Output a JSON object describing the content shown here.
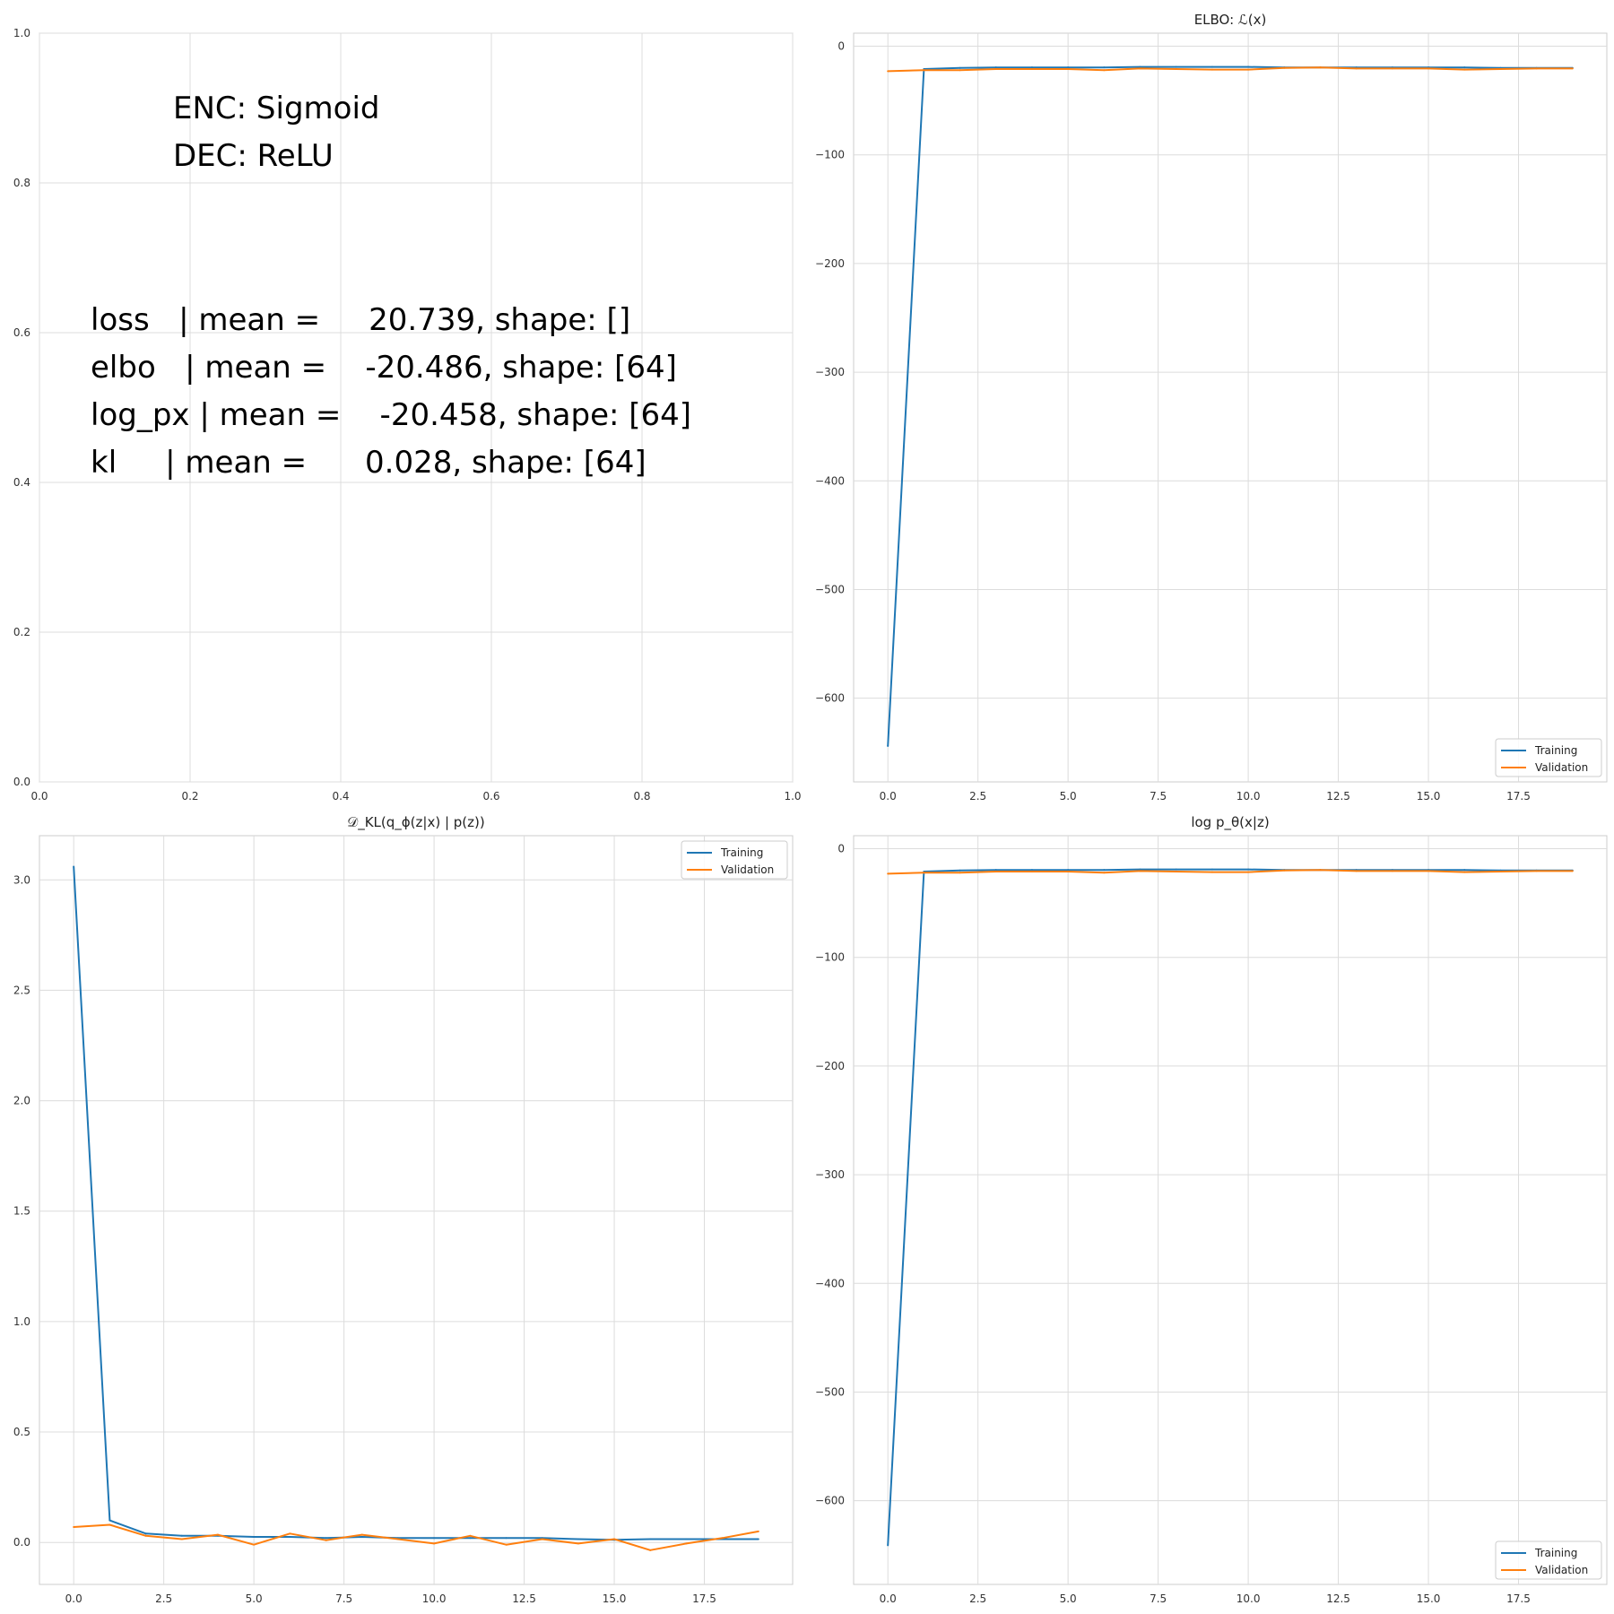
{
  "chart_data": [
    {
      "id": "text_panel",
      "type": "text",
      "title": "",
      "xlim": [
        0,
        1
      ],
      "ylim": [
        0,
        1
      ],
      "xticks": [
        "0.0",
        "0.2",
        "0.4",
        "0.6",
        "0.8",
        "1.0"
      ],
      "yticks": [
        "0.0",
        "0.2",
        "0.4",
        "0.6",
        "0.8",
        "1.0"
      ],
      "grid": true,
      "header_lines": [
        "ENC: Sigmoid",
        "DEC: ReLU"
      ],
      "stat_lines": [
        "loss   | mean =     20.739, shape: []",
        "elbo   | mean =    -20.486, shape: [64]",
        "log_px | mean =    -20.458, shape: [64]",
        "kl     | mean =      0.028, shape: [64]"
      ]
    },
    {
      "id": "elbo",
      "type": "line",
      "title": "ELBO: ℒ(x)",
      "xlim": [
        -0.95,
        19.95
      ],
      "ylim": [
        -677,
        12
      ],
      "xticks": [
        "0.0",
        "2.5",
        "5.0",
        "7.5",
        "10.0",
        "12.5",
        "15.0",
        "17.5"
      ],
      "xtick_values": [
        0,
        2.5,
        5,
        7.5,
        10,
        12.5,
        15,
        17.5
      ],
      "yticks": [
        "−600",
        "−500",
        "−400",
        "−300",
        "−200",
        "−100",
        "0"
      ],
      "ytick_values": [
        -600,
        -500,
        -400,
        -300,
        -200,
        -100,
        0
      ],
      "grid": true,
      "legend_position": "lower-right",
      "x": [
        0,
        1,
        2,
        3,
        4,
        5,
        6,
        7,
        8,
        9,
        10,
        11,
        12,
        13,
        14,
        15,
        16,
        17,
        18,
        19
      ],
      "series": [
        {
          "name": "Training",
          "color": "#1f77b4",
          "values": [
            -644,
            -21,
            -20,
            -19.5,
            -19.5,
            -19.5,
            -19.5,
            -19,
            -19,
            -19,
            -19,
            -19.5,
            -19.5,
            -19.5,
            -19.5,
            -19.5,
            -19.5,
            -20,
            -20,
            -20
          ]
        },
        {
          "name": "Validation",
          "color": "#ff7f0e",
          "values": [
            -23,
            -22,
            -22,
            -21,
            -21,
            -21,
            -22,
            -20.5,
            -21,
            -21.5,
            -21.5,
            -20,
            -19.5,
            -20.5,
            -20.5,
            -20.5,
            -21.5,
            -21,
            -20.5,
            -20.5
          ]
        }
      ]
    },
    {
      "id": "kl",
      "type": "line",
      "title": "𝒟_KL(q_ϕ(z|x) | p(z))",
      "xlim": [
        -0.95,
        19.95
      ],
      "ylim": [
        -0.19,
        3.2
      ],
      "xticks": [
        "0.0",
        "2.5",
        "5.0",
        "7.5",
        "10.0",
        "12.5",
        "15.0",
        "17.5"
      ],
      "xtick_values": [
        0,
        2.5,
        5,
        7.5,
        10,
        12.5,
        15,
        17.5
      ],
      "yticks": [
        "0.0",
        "0.5",
        "1.0",
        "1.5",
        "2.0",
        "2.5",
        "3.0"
      ],
      "ytick_values": [
        0,
        0.5,
        1,
        1.5,
        2,
        2.5,
        3
      ],
      "grid": true,
      "legend_position": "upper-right",
      "x": [
        0,
        1,
        2,
        3,
        4,
        5,
        6,
        7,
        8,
        9,
        10,
        11,
        12,
        13,
        14,
        15,
        16,
        17,
        18,
        19
      ],
      "series": [
        {
          "name": "Training",
          "color": "#1f77b4",
          "values": [
            3.06,
            0.1,
            0.04,
            0.03,
            0.03,
            0.025,
            0.025,
            0.02,
            0.025,
            0.02,
            0.02,
            0.02,
            0.02,
            0.02,
            0.015,
            0.012,
            0.015,
            0.015,
            0.015,
            0.015
          ]
        },
        {
          "name": "Validation",
          "color": "#ff7f0e",
          "values": [
            0.07,
            0.08,
            0.03,
            0.015,
            0.035,
            -0.01,
            0.04,
            0.01,
            0.035,
            0.015,
            -0.005,
            0.03,
            -0.01,
            0.015,
            -0.005,
            0.015,
            -0.035,
            -0.005,
            0.02,
            0.05
          ]
        }
      ]
    },
    {
      "id": "log_px",
      "type": "line",
      "title": "log p_θ(x|z)",
      "xlim": [
        -0.95,
        19.95
      ],
      "ylim": [
        -677,
        12
      ],
      "xticks": [
        "0.0",
        "2.5",
        "5.0",
        "7.5",
        "10.0",
        "12.5",
        "15.0",
        "17.5"
      ],
      "xtick_values": [
        0,
        2.5,
        5,
        7.5,
        10,
        12.5,
        15,
        17.5
      ],
      "yticks": [
        "−600",
        "−500",
        "−400",
        "−300",
        "−200",
        "−100",
        "0"
      ],
      "ytick_values": [
        -600,
        -500,
        -400,
        -300,
        -200,
        -100,
        0
      ],
      "grid": true,
      "legend_position": "lower-right",
      "x": [
        0,
        1,
        2,
        3,
        4,
        5,
        6,
        7,
        8,
        9,
        10,
        11,
        12,
        13,
        14,
        15,
        16,
        17,
        18,
        19
      ],
      "series": [
        {
          "name": "Training",
          "color": "#1f77b4",
          "values": [
            -641,
            -21,
            -20,
            -19.5,
            -19.5,
            -19.5,
            -19.5,
            -19,
            -19,
            -19,
            -19,
            -19.5,
            -19.5,
            -19.5,
            -19.5,
            -19.5,
            -19.5,
            -20,
            -20,
            -20
          ]
        },
        {
          "name": "Validation",
          "color": "#ff7f0e",
          "values": [
            -23,
            -22,
            -22,
            -21,
            -21,
            -21,
            -22,
            -20.5,
            -21,
            -21.5,
            -21.5,
            -20,
            -19.5,
            -20.5,
            -20.5,
            -20.5,
            -21.5,
            -21,
            -20.5,
            -20.5
          ]
        }
      ]
    }
  ]
}
